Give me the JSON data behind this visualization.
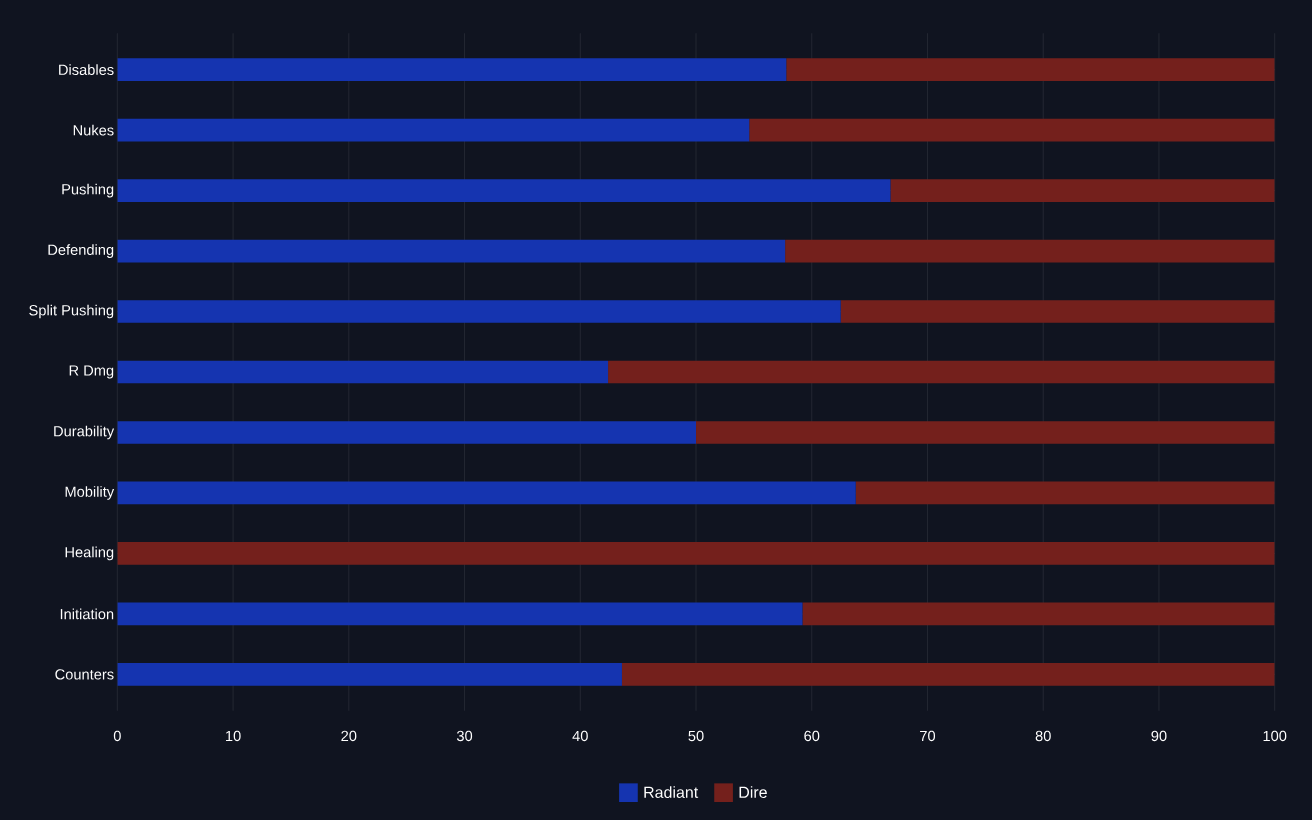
{
  "chart_data": {
    "type": "bar",
    "orientation": "horizontal",
    "stacked": true,
    "categories": [
      "Disables",
      "Nukes",
      "Pushing",
      "Defending",
      "Split Pushing",
      "R Dmg",
      "Durability",
      "Mobility",
      "Healing",
      "Initiation",
      "Counters"
    ],
    "series": [
      {
        "name": "Radiant",
        "color": "#1534b0",
        "values": [
          57.8,
          54.6,
          66.8,
          57.7,
          62.5,
          42.4,
          50,
          63.8,
          0,
          59.2,
          43.6
        ]
      },
      {
        "name": "Dire",
        "color": "#74201c",
        "values": [
          42.2,
          45.4,
          33.2,
          42.3,
          37.5,
          57.6,
          50,
          36.2,
          100,
          40.8,
          56.4
        ]
      }
    ],
    "xlim": [
      0,
      100
    ],
    "xticks": [
      0,
      10,
      20,
      30,
      40,
      50,
      60,
      70,
      80,
      90,
      100
    ],
    "grid": true,
    "legend": "bottom"
  }
}
